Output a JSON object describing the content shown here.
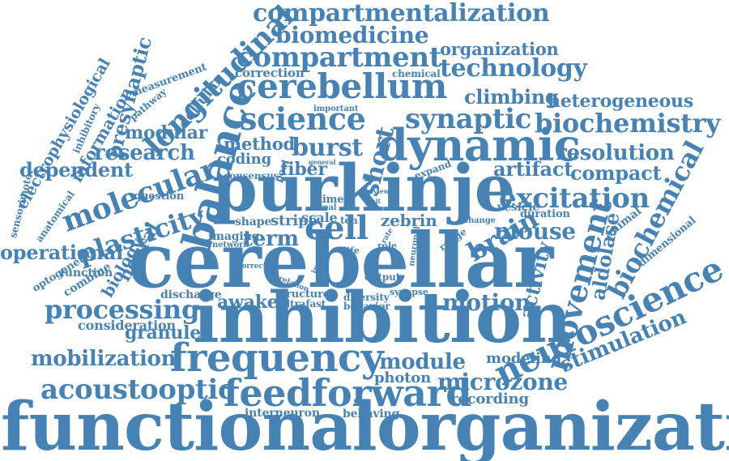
{
  "palette": {
    "word_color": "#4682b4",
    "background": "#ffffff"
  },
  "words": [
    "functionalorganization",
    "inhibition",
    "cerebellar",
    "purkinje",
    "dynamic",
    "cerebellum",
    "frequency",
    "feedforward",
    "balance",
    "neuroscience",
    "compartmentalization",
    "biomedicine",
    "compartment",
    "technology",
    "organization",
    "longitudinal",
    "science",
    "synaptic",
    "biochemistry",
    "molecular",
    "plasticity",
    "excitation",
    "cell",
    "movement",
    "biochemical",
    "processing",
    "acoustooptic",
    "mobilization",
    "motion",
    "stimulation",
    "module",
    "microzone",
    "resolution",
    "research",
    "dependent",
    "operational",
    "heterogeneous",
    "climbing",
    "artifact",
    "compact",
    "mouse",
    "brain",
    "zebrin",
    "aldolase",
    "activity",
    "burst",
    "short",
    "modular",
    "term",
    "fiber",
    "method",
    "coding",
    "awake",
    "granule",
    "recording",
    "modeling",
    "photon",
    "presynaptic",
    "cellular",
    "information",
    "electrophysiological",
    "neural",
    "biology",
    "correction",
    "chemical",
    "measurement",
    "pathway",
    "sensorimotor",
    "anatomical",
    "optogenetic",
    "function",
    "combine",
    "consideration",
    "discharge",
    "structure",
    "ultrafast",
    "diversity",
    "behavior",
    "output",
    "synapse",
    "interneuron",
    "behaving",
    "stripe",
    "scale",
    "shape",
    "imaging",
    "network",
    "time",
    "real",
    "question",
    "vesicle",
    "duration",
    "animal",
    "dimensional",
    "change",
    "range",
    "neuronal",
    "rate",
    "role",
    "life",
    "input",
    "relation",
    "correct",
    "consensus",
    "pool",
    "general",
    "review",
    "unit",
    "expand",
    "important",
    "inhibitory",
    "ten"
  ]
}
